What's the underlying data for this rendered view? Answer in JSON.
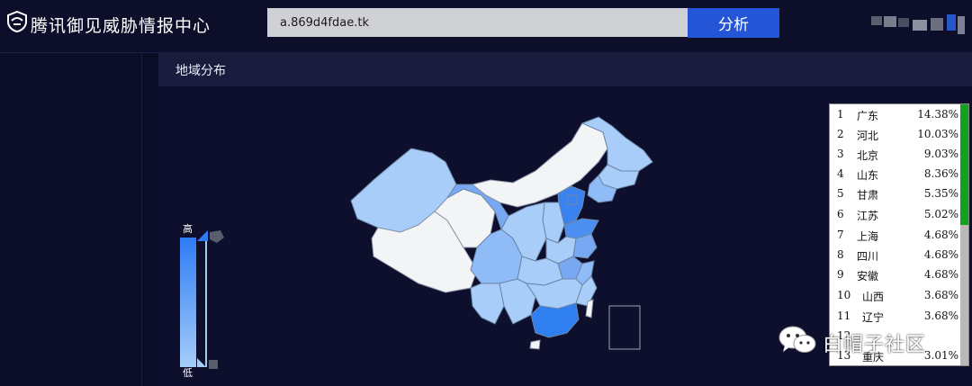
{
  "header": {
    "app_title": "腾讯御见威胁情报中心",
    "logo_icon": "shield-eye-icon",
    "search_value": "a.869d4fdae.tk",
    "analyze_label": "分析",
    "user_icon": "avatar-icon"
  },
  "panel": {
    "title": "地域分布"
  },
  "legend": {
    "high": "高",
    "low": "低",
    "color_high": "#2e7cf4",
    "color_low": "#a5cdfa"
  },
  "ranking": [
    {
      "rank": "1",
      "name": "广东",
      "pct": "14.38%"
    },
    {
      "rank": "2",
      "name": "河北",
      "pct": "10.03%"
    },
    {
      "rank": "3",
      "name": "北京",
      "pct": "9.03%"
    },
    {
      "rank": "4",
      "name": "山东",
      "pct": "8.36%"
    },
    {
      "rank": "5",
      "name": "甘肃",
      "pct": "5.35%"
    },
    {
      "rank": "6",
      "name": "江苏",
      "pct": "5.02%"
    },
    {
      "rank": "7",
      "name": "上海",
      "pct": "4.68%"
    },
    {
      "rank": "8",
      "name": "四川",
      "pct": "4.68%"
    },
    {
      "rank": "9",
      "name": "安徽",
      "pct": "4.68%"
    },
    {
      "rank": "10",
      "name": "山西",
      "pct": "3.68%"
    },
    {
      "rank": "11",
      "name": "辽宁",
      "pct": "3.68%"
    },
    {
      "rank": "12",
      "name": "",
      "pct": ""
    },
    {
      "rank": "13",
      "name": "重庆",
      "pct": "3.01%"
    }
  ],
  "watermark": {
    "text": "白帽子社区",
    "icon": "wechat-icon"
  }
}
